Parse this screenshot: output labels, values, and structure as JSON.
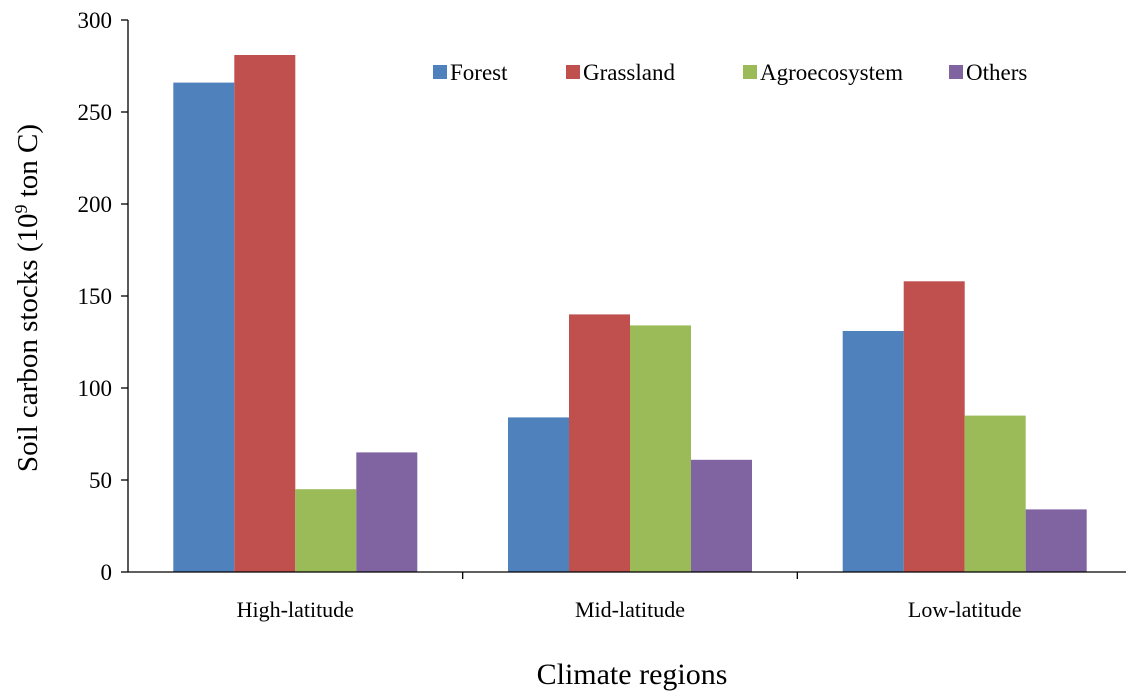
{
  "chart_data": {
    "type": "bar",
    "categories": [
      "High-latitude",
      "Mid-latitude",
      "Low-latitude"
    ],
    "series": [
      {
        "name": "Forest",
        "values": [
          266,
          84,
          131
        ],
        "color": "#4f81bd"
      },
      {
        "name": "Grassland",
        "values": [
          281,
          140,
          158
        ],
        "color": "#c0504d"
      },
      {
        "name": "Agroecosystem",
        "values": [
          45,
          134,
          85
        ],
        "color": "#9bbb59"
      },
      {
        "name": "Others",
        "values": [
          65,
          61,
          34
        ],
        "color": "#8064a2"
      }
    ],
    "xlabel": "Climate regions",
    "ylabel_main": "Soil carbon stocks (10",
    "ylabel_sup": "9",
    "ylabel_end": " ton C)",
    "ylim": [
      0,
      300
    ],
    "yticks": [
      "0",
      "50",
      "100",
      "150",
      "200",
      "250",
      "300"
    ],
    "legend_position": "top-right",
    "grid": false
  }
}
